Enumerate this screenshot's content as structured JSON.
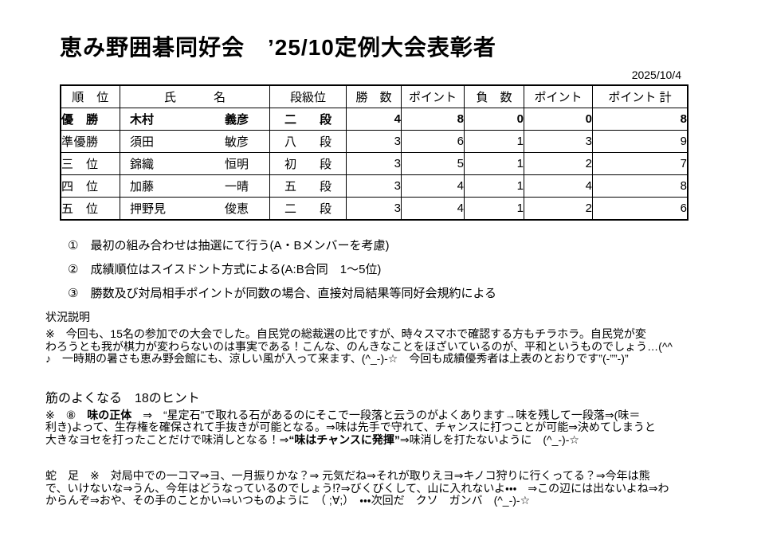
{
  "page": {
    "title": "恵み野囲碁同好会　’25/10定例大会表彰者",
    "date": "2025/10/4"
  },
  "table": {
    "headers": {
      "rank": "順　位",
      "name_l": "氏",
      "name_r": "名",
      "grade": "段級位",
      "wins": "勝　数",
      "points1": "ポイント",
      "losses": "負　数",
      "points2": "ポイント",
      "total": "ポイント 計"
    },
    "rows": [
      {
        "rank": "優　勝",
        "sei": "木村",
        "mei": "義彦",
        "dan_l": "二",
        "dan_r": "段",
        "wins": "4",
        "wpts": "8",
        "losses": "0",
        "lpts": "0",
        "total": "8"
      },
      {
        "rank": "準優勝",
        "sei": "須田",
        "mei": "敏彦",
        "dan_l": "八",
        "dan_r": "段",
        "wins": "3",
        "wpts": "6",
        "losses": "1",
        "lpts": "3",
        "total": "9"
      },
      {
        "rank": "三　位",
        "sei": "錦織",
        "mei": "恒明",
        "dan_l": "初",
        "dan_r": "段",
        "wins": "3",
        "wpts": "5",
        "losses": "1",
        "lpts": "2",
        "total": "7"
      },
      {
        "rank": "四　位",
        "sei": "加藤",
        "mei": "一晴",
        "dan_l": "五",
        "dan_r": "段",
        "wins": "3",
        "wpts": "4",
        "losses": "1",
        "lpts": "4",
        "total": "8"
      },
      {
        "rank": "五　位",
        "sei": "押野見",
        "mei": "俊恵",
        "dan_l": "二",
        "dan_r": "段",
        "wins": "3",
        "wpts": "4",
        "losses": "1",
        "lpts": "2",
        "total": "6"
      }
    ]
  },
  "notes": {
    "items": [
      "①　最初の組み合わせは抽選にて行う(A・Bメンバーを考慮)",
      "②　成績順位はスイスドント方式による(A:B合同　1～5位)",
      "③　勝数及び対局相手ポイントが同数の場合、直接対局結果等同好会規約による"
    ]
  },
  "status": {
    "heading": "状況説明",
    "body": "※　今回も、15名の参加での大会でした。自民党の総裁選の比ですが、時々スマホで確認する方もチラホラ。自民党が変\nわろうとも我が棋力が変わらないのは事実である！こんな、のんきなことをほざいているのが、平和というものでしょう…(^^\n♪　一時期の暑さも恵み野会館にも、涼しい風が入って来ます、(^_-)-☆　今回も成績優秀者は上表のとおりです”(-””-)”"
  },
  "hints": {
    "heading": "筋のよくなる　18のヒント",
    "prefix": "※　⑧　",
    "term": "味の正体",
    "body1": "　⇒　“星定石”で取れる石があるのにそこで一段落と云うのがよくあります→味を残して一段落⇒(味＝\n利き)よって、生存権を確保されて手抜きが可能となる。⇒味は先手で守れて、チャンスに打つことが可能⇒決めてしまうと\n大きなヨセを打ったことだけで味消しとなる！⇒",
    "emphasis": "“味はチャンスに発揮”",
    "body2": "⇒味消しを打たないように　(^_-)-☆"
  },
  "aside": {
    "label": "蛇　足",
    "body": "　※　対局中での一コマ⇒ヨ、一月振りかな？⇒ 元気だね⇒それが取りえヨ⇒キノコ狩りに行くってる？⇒今年は熊\nで、いけないな⇒うん、今年はどうなっているのでしょう⁉⇒びくびくして、山に入れないよ・・・　⇒この辺には出ないよね⇒わ\nからんぞ⇒おや、その手のことかい⇒いつものように　（ ;∀;）　・・・次回だ　クソ　ガンバ　(^_-)-☆"
  }
}
